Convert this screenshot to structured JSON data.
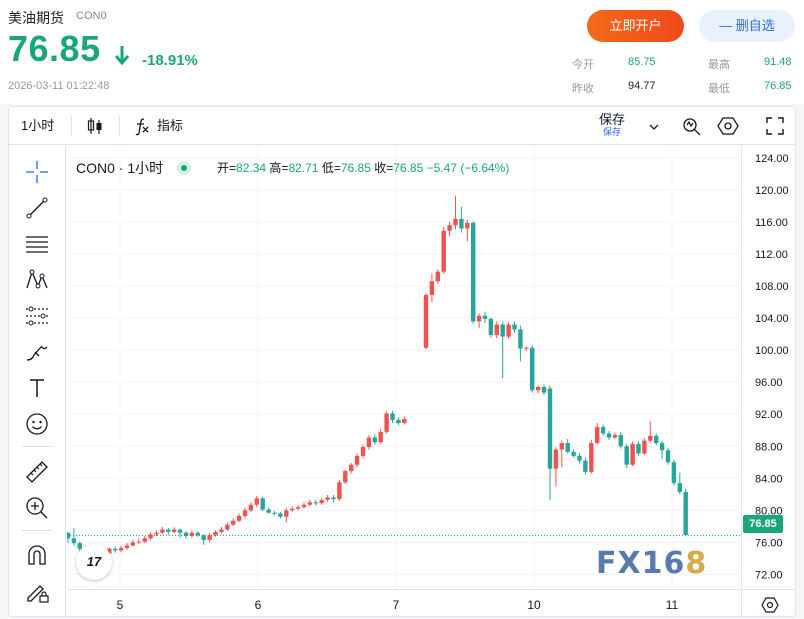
{
  "header": {
    "name": "美油期货",
    "code": "CON0",
    "price": "76.85",
    "change_pct": "-18.91%",
    "datetime": "2026-03-11 01:22:48",
    "open_account_label": "立即开户",
    "favorite_label": "— 删自选",
    "stats": {
      "open_label": "今开",
      "open": "85.75",
      "high_label": "最高",
      "high": "91.48",
      "prev_close_label": "昨收",
      "prev_close": "94.77",
      "low_label": "最低",
      "low": "76.85"
    }
  },
  "toolbar": {
    "interval": "1小时",
    "indicators_label": "指标",
    "save_label": "保存",
    "save_sub": "保存"
  },
  "legend": {
    "symbol": "CON0",
    "interval": "1小时",
    "open_label": "开",
    "open": "82.34",
    "high_label": "高",
    "high": "82.71",
    "low_label": "低",
    "low": "76.85",
    "close_label": "收",
    "close": "76.85",
    "change": "−5.47 (−6.64%)"
  },
  "last_price_label": "76.85",
  "watermark": {
    "text_a": "FX16",
    "text_b": "8"
  },
  "tv_logo": "17",
  "colors": {
    "up": "#ef5350",
    "down": "#26a69a",
    "accent": "#1aa57c",
    "brand": "#f26a1b"
  },
  "chart_data": {
    "type": "candlestick",
    "ylim": [
      70,
      125
    ],
    "y_ticks": [
      "124.00",
      "120.00",
      "116.00",
      "112.00",
      "108.00",
      "104.00",
      "100.00",
      "96.00",
      "92.00",
      "88.00",
      "84.00",
      "80.00",
      "76.00",
      "72.00"
    ],
    "x_ticks": [
      "5",
      "6",
      "7",
      "10",
      "11"
    ],
    "last_value": 76.85,
    "candles": [
      [
        77.2,
        76.5,
        77.3,
        75.9
      ],
      [
        76.5,
        75.9,
        77.8,
        75.6
      ],
      [
        75.9,
        75.2,
        76.1,
        74.6
      ],
      [
        75.2,
        75.0,
        75.6,
        74.4
      ],
      [
        75.0,
        74.4,
        75.3,
        74.0
      ],
      [
        74.4,
        74.1,
        74.8,
        73.6
      ],
      [
        74.1,
        74.6,
        74.9,
        73.8
      ],
      [
        74.6,
        75.2,
        75.4,
        74.4
      ],
      [
        75.2,
        75.0,
        75.5,
        74.7
      ],
      [
        75.0,
        75.3,
        75.6,
        74.8
      ],
      [
        75.3,
        75.6,
        75.9,
        75.1
      ],
      [
        75.6,
        76.0,
        76.3,
        75.5
      ],
      [
        76.0,
        76.1,
        76.5,
        75.8
      ],
      [
        76.1,
        76.5,
        76.8,
        75.9
      ],
      [
        76.5,
        77.0,
        77.3,
        76.3
      ],
      [
        77.0,
        77.2,
        77.5,
        76.8
      ],
      [
        77.2,
        77.6,
        77.9,
        77.0
      ],
      [
        77.6,
        77.3,
        77.8,
        76.9
      ],
      [
        77.3,
        77.6,
        77.9,
        77.1
      ],
      [
        77.6,
        77.2,
        77.7,
        76.6
      ],
      [
        77.2,
        76.8,
        77.4,
        76.5
      ],
      [
        76.8,
        77.2,
        77.5,
        76.6
      ],
      [
        77.2,
        76.9,
        77.4,
        76.7
      ],
      [
        76.9,
        76.3,
        77.0,
        75.7
      ],
      [
        76.3,
        76.9,
        77.2,
        76.0
      ],
      [
        76.9,
        77.3,
        77.5,
        76.7
      ],
      [
        77.3,
        77.6,
        77.9,
        77.1
      ],
      [
        77.6,
        78.2,
        78.5,
        77.4
      ],
      [
        78.2,
        78.7,
        79.0,
        78.0
      ],
      [
        78.7,
        79.3,
        79.6,
        78.5
      ],
      [
        79.3,
        80.0,
        80.3,
        79.0
      ],
      [
        80.0,
        80.7,
        81.0,
        79.8
      ],
      [
        80.7,
        81.5,
        81.8,
        80.4
      ],
      [
        81.5,
        80.1,
        81.7,
        79.9
      ],
      [
        80.1,
        79.7,
        80.3,
        79.6
      ],
      [
        79.7,
        79.6,
        79.9,
        79.4
      ],
      [
        79.6,
        79.2,
        79.8,
        79.0
      ],
      [
        79.2,
        80.0,
        80.3,
        78.5
      ],
      [
        80.0,
        80.2,
        80.5,
        79.8
      ],
      [
        80.2,
        80.4,
        80.7,
        80.0
      ],
      [
        80.4,
        80.7,
        81.0,
        80.2
      ],
      [
        80.7,
        81.0,
        81.3,
        80.5
      ],
      [
        81.0,
        80.9,
        81.3,
        80.6
      ],
      [
        80.9,
        81.3,
        81.6,
        80.7
      ],
      [
        81.3,
        81.6,
        81.9,
        81.1
      ],
      [
        81.6,
        81.4,
        81.9,
        81.0
      ],
      [
        81.4,
        83.5,
        83.8,
        81.2
      ],
      [
        83.5,
        84.9,
        85.1,
        83.3
      ],
      [
        84.9,
        85.7,
        85.9,
        84.6
      ],
      [
        85.7,
        86.8,
        87.1,
        85.4
      ],
      [
        86.8,
        87.9,
        88.2,
        86.5
      ],
      [
        87.9,
        89.1,
        89.4,
        87.6
      ],
      [
        89.1,
        88.5,
        89.5,
        88.2
      ],
      [
        88.5,
        89.8,
        90.2,
        88.3
      ],
      [
        89.8,
        92.1,
        92.4,
        89.6
      ],
      [
        92.1,
        91.3,
        92.4,
        90.9
      ],
      [
        91.3,
        90.9,
        91.6,
        90.6
      ],
      [
        90.9,
        91.4,
        91.7,
        90.7
      ],
      [
        100.3,
        106.9,
        107.1,
        100.1
      ],
      [
        106.9,
        108.6,
        109.6,
        106.0
      ],
      [
        108.6,
        109.8,
        110.1,
        108.3
      ],
      [
        109.8,
        114.9,
        115.4,
        109.5
      ],
      [
        114.9,
        115.6,
        116.0,
        114.2
      ],
      [
        115.6,
        116.4,
        119.3,
        115.1
      ],
      [
        116.4,
        115.2,
        117.9,
        114.7
      ],
      [
        115.2,
        115.9,
        116.3,
        113.6
      ],
      [
        115.9,
        103.6,
        116.1,
        103.3
      ],
      [
        103.6,
        104.3,
        104.6,
        102.8
      ],
      [
        104.3,
        103.9,
        104.8,
        103.4
      ],
      [
        103.9,
        101.9,
        104.1,
        101.6
      ],
      [
        101.9,
        103.2,
        103.6,
        101.5
      ],
      [
        103.2,
        101.7,
        103.6,
        96.5
      ],
      [
        101.7,
        103.2,
        103.5,
        101.4
      ],
      [
        103.2,
        102.6,
        103.6,
        102.2
      ],
      [
        102.6,
        100.2,
        103.1,
        98.6
      ],
      [
        100.2,
        100.3,
        100.5,
        99.9
      ],
      [
        100.3,
        95.0,
        100.6,
        94.7
      ],
      [
        95.0,
        95.4,
        95.6,
        94.6
      ],
      [
        95.4,
        94.7,
        95.7,
        94.4
      ],
      [
        94.7,
        95.2,
        95.6,
        94.4
      ],
      [
        95.2,
        85.2,
        95.3,
        81.3
      ],
      [
        85.2,
        87.6,
        87.9,
        83.0
      ],
      [
        87.6,
        88.4,
        88.7,
        85.4
      ],
      [
        88.4,
        87.3,
        88.9,
        87.1
      ],
      [
        87.3,
        86.8,
        87.6,
        86.6
      ],
      [
        86.8,
        86.2,
        87.1,
        85.9
      ],
      [
        86.2,
        84.8,
        86.6,
        84.5
      ],
      [
        84.8,
        88.4,
        88.8,
        84.6
      ],
      [
        88.4,
        90.4,
        90.9,
        88.2
      ],
      [
        90.4,
        89.6,
        90.7,
        89.3
      ],
      [
        89.6,
        89.1,
        89.9,
        88.8
      ],
      [
        89.1,
        89.4,
        89.7,
        88.9
      ],
      [
        89.4,
        88.0,
        89.8,
        87.7
      ],
      [
        88.0,
        85.7,
        88.3,
        85.3
      ],
      [
        85.7,
        88.3,
        88.6,
        85.5
      ],
      [
        88.3,
        87.1,
        88.6,
        86.8
      ],
      [
        87.1,
        88.7,
        89.0,
        86.9
      ],
      [
        88.7,
        89.3,
        91.1,
        88.5
      ],
      [
        89.3,
        88.4,
        89.6,
        88.1
      ],
      [
        88.4,
        87.5,
        88.7,
        86.4
      ],
      [
        87.5,
        86.0,
        87.8,
        85.7
      ],
      [
        86.0,
        83.4,
        86.3,
        83.1
      ],
      [
        83.4,
        82.3,
        84.7,
        82.0
      ],
      [
        82.3,
        76.9,
        82.7,
        76.9
      ]
    ]
  }
}
